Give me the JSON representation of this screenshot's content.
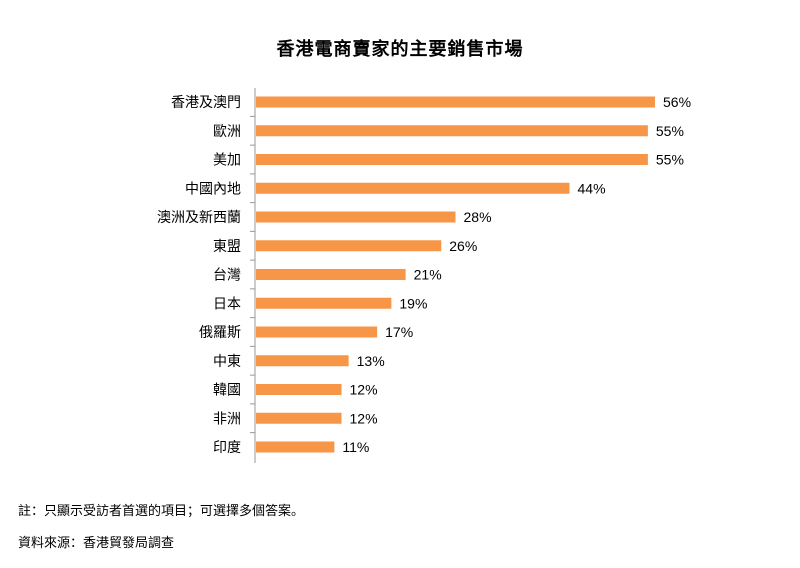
{
  "chart_data": {
    "type": "bar",
    "orientation": "horizontal",
    "title": "香港電商賣家的主要銷售市場",
    "categories": [
      "香港及澳門",
      "歐洲",
      "美加",
      "中國內地",
      "澳洲及新西蘭",
      "東盟",
      "台灣",
      "日本",
      "俄羅斯",
      "中東",
      "韓國",
      "非洲",
      "印度"
    ],
    "values": [
      56,
      55,
      55,
      44,
      28,
      26,
      21,
      19,
      17,
      13,
      12,
      12,
      11
    ],
    "value_labels": [
      "56%",
      "55%",
      "55%",
      "44%",
      "28%",
      "26%",
      "21%",
      "19%",
      "17%",
      "13%",
      "12%",
      "12%",
      "11%"
    ],
    "xlim": [
      0,
      56
    ],
    "bar_color": "#F79646",
    "grid": false,
    "legend": "none"
  },
  "notes": {
    "note": "註：只顯示受訪者首選的項目；可選擇多個答案。",
    "source": "資料來源：香港貿發局調查"
  }
}
